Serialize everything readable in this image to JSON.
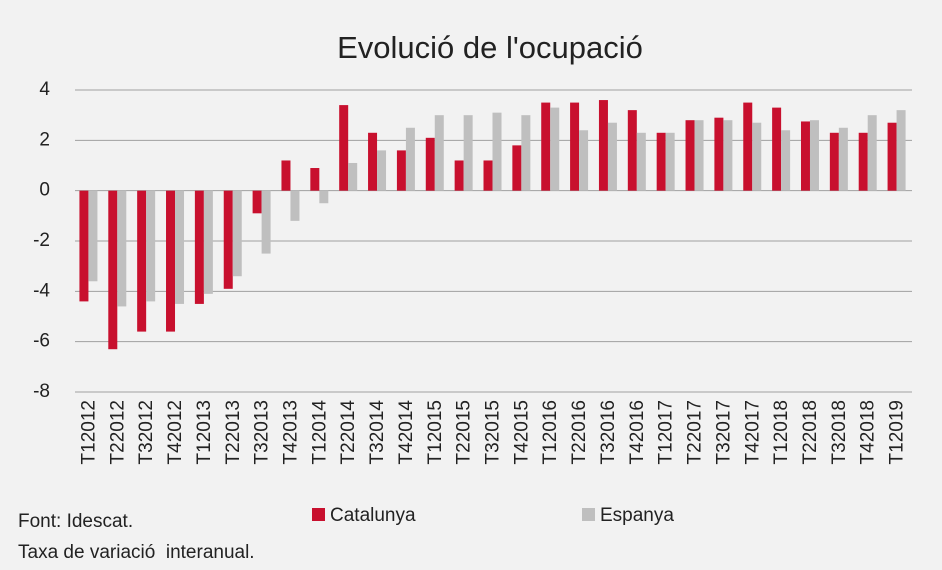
{
  "chart_data": {
    "type": "bar",
    "title": "Evolució de l'ocupació",
    "categories": [
      "T12012",
      "T22012",
      "T32012",
      "T42012",
      "T12013",
      "T22013",
      "T32013",
      "T42013",
      "T12014",
      "T22014",
      "T32014",
      "T42014",
      "T12015",
      "T22015",
      "T32015",
      "T42015",
      "T12016",
      "T22016",
      "T32016",
      "T42016",
      "T12017",
      "T22017",
      "T32017",
      "T42017",
      "T12018",
      "T22018",
      "T32018",
      "T42018",
      "T12019"
    ],
    "series": [
      {
        "name": "Catalunya",
        "color": "#c8102e",
        "values": [
          -4.4,
          -6.3,
          -5.6,
          -5.6,
          -4.5,
          -3.9,
          -0.9,
          1.2,
          0.9,
          3.4,
          2.3,
          1.6,
          2.1,
          1.2,
          1.2,
          1.8,
          3.5,
          3.5,
          3.6,
          3.2,
          2.3,
          2.8,
          2.9,
          3.5,
          3.3,
          2.75,
          2.3,
          2.3,
          2.7
        ]
      },
      {
        "name": "Espanya",
        "color": "#bfbfbf",
        "values": [
          -3.6,
          -4.6,
          -4.4,
          -4.5,
          -4.1,
          -3.4,
          -2.5,
          -1.2,
          -0.5,
          1.1,
          1.6,
          2.5,
          3.0,
          3.0,
          3.1,
          3.0,
          3.3,
          2.4,
          2.7,
          2.3,
          2.3,
          2.8,
          2.8,
          2.7,
          2.4,
          2.8,
          2.5,
          3.0,
          3.2
        ]
      }
    ],
    "ylim": [
      -8,
      4
    ],
    "yticks": [
      -8,
      -6,
      -4,
      -2,
      0,
      2,
      4
    ],
    "grid": true,
    "notes": [
      "Font: Idescat.",
      "Taxa de variació  interanual."
    ]
  }
}
